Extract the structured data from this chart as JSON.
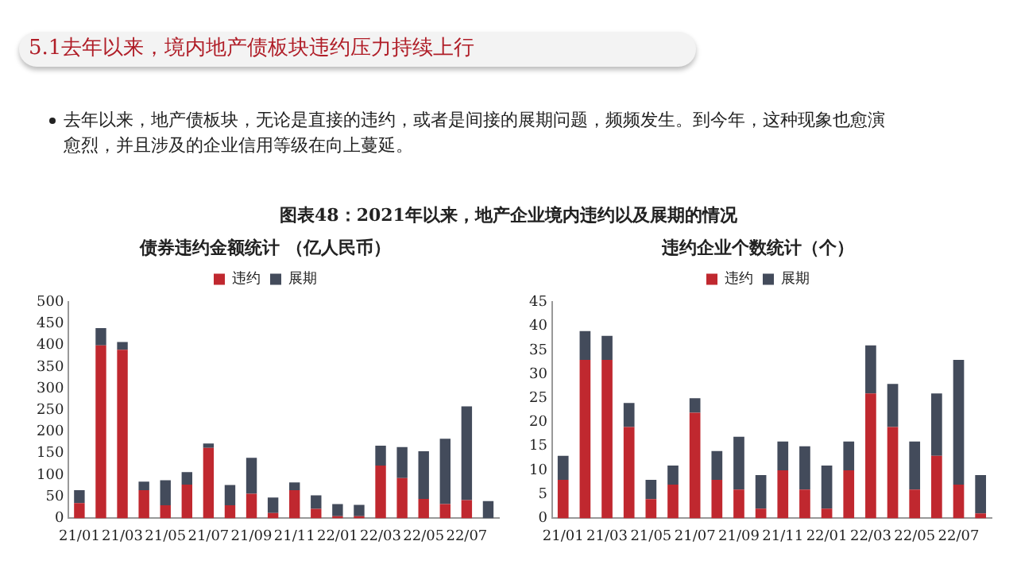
{
  "chart_data": [
    {
      "type": "bar",
      "stacked": true,
      "title": "债券违约金额统计 （亿人民币）",
      "annotations": [
        "5.1去年以来，境内地产债板块违约压力持续上行",
        "去年以来，地产债板块，无论是直接的违约，或者是间接的展期问题，频频发生。到今年，这种现象也愈演愈烈，并且涉及的企业信用等级在向上蔓延。",
        "图表48：2021年以来，地产企业境内违约以及展期的情况"
      ],
      "categories": [
        "21/01",
        null,
        "21/03",
        null,
        "21/05",
        null,
        "21/07",
        null,
        "21/09",
        null,
        "21/11",
        null,
        "22/01",
        null,
        "22/03",
        null,
        "22/05",
        null,
        "22/07",
        null
      ],
      "series": [
        {
          "name": "违约",
          "color": "#c0282f",
          "values": [
            35,
            400,
            390,
            65,
            30,
            78,
            163,
            30,
            57,
            12,
            65,
            22,
            5,
            5,
            122,
            93,
            45,
            33,
            42,
            0
          ]
        },
        {
          "name": "展期",
          "color": "#434b5b",
          "values": [
            30,
            40,
            18,
            20,
            58,
            29,
            10,
            47,
            83,
            36,
            18,
            31,
            28,
            26,
            46,
            72,
            110,
            151,
            217,
            40
          ]
        }
      ],
      "ylim": [
        0,
        500
      ],
      "yticks": [
        0,
        50,
        100,
        150,
        200,
        250,
        300,
        350,
        400,
        450,
        500
      ],
      "grid": false,
      "legend": "top"
    },
    {
      "type": "bar",
      "stacked": true,
      "title": "违约企业个数统计（个）",
      "categories": [
        "21/01",
        null,
        "21/03",
        null,
        "21/05",
        null,
        "21/07",
        null,
        "21/09",
        null,
        "21/11",
        null,
        "22/01",
        null,
        "22/03",
        null,
        "22/05",
        null,
        "22/07",
        null
      ],
      "series": [
        {
          "name": "违约",
          "color": "#c0282f",
          "values": [
            8,
            33,
            33,
            19,
            4,
            7,
            22,
            8,
            6,
            2,
            10,
            6,
            2,
            10,
            26,
            19,
            6,
            13,
            7,
            1
          ]
        },
        {
          "name": "展期",
          "color": "#434b5b",
          "values": [
            5,
            6,
            5,
            5,
            4,
            4,
            3,
            6,
            11,
            7,
            6,
            9,
            9,
            6,
            10,
            9,
            10,
            13,
            26,
            8
          ]
        }
      ],
      "ylim": [
        0,
        45
      ],
      "yticks": [
        0,
        5,
        10,
        15,
        20,
        25,
        30,
        35,
        40,
        45
      ],
      "grid": false,
      "legend": "top"
    }
  ]
}
